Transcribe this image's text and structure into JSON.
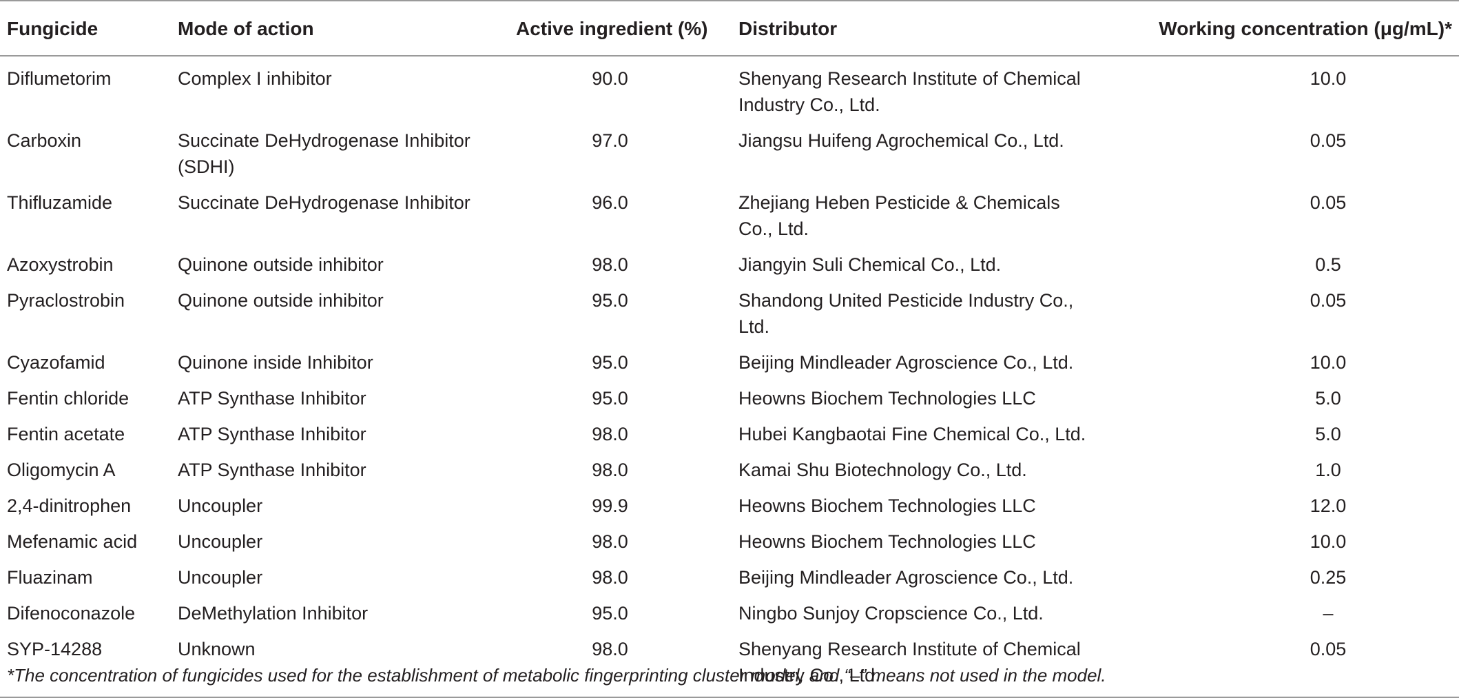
{
  "table": {
    "headers": [
      "Fungicide",
      "Mode of action",
      "Active ingredient (%)",
      "Distributor",
      "Working concentration (μg/mL)*"
    ],
    "rows": [
      [
        "Diflumetorim",
        "Complex I inhibitor",
        "90.0",
        "Shenyang Research Institute of Chemical Industry Co., Ltd.",
        "10.0"
      ],
      [
        "Carboxin",
        "Succinate DeHydrogenase Inhibitor (SDHI)",
        "97.0",
        "Jiangsu Huifeng Agrochemical Co., Ltd.",
        "0.05"
      ],
      [
        "Thifluzamide",
        "Succinate DeHydrogenase Inhibitor",
        "96.0",
        "Zhejiang Heben Pesticide & Chemicals Co., Ltd.",
        "0.05"
      ],
      [
        "Azoxystrobin",
        "Quinone outside inhibitor",
        "98.0",
        "Jiangyin Suli Chemical Co., Ltd.",
        "0.5"
      ],
      [
        "Pyraclostrobin",
        "Quinone outside inhibitor",
        "95.0",
        "Shandong United Pesticide Industry Co., Ltd.",
        "0.05"
      ],
      [
        "Cyazofamid",
        "Quinone inside Inhibitor",
        "95.0",
        "Beijing Mindleader Agroscience Co., Ltd.",
        "10.0"
      ],
      [
        "Fentin chloride",
        "ATP Synthase Inhibitor",
        "95.0",
        "Heowns Biochem Technologies LLC",
        "5.0"
      ],
      [
        "Fentin acetate",
        "ATP Synthase Inhibitor",
        "98.0",
        "Hubei Kangbaotai Fine Chemical Co., Ltd.",
        "5.0"
      ],
      [
        "Oligomycin A",
        "ATP Synthase Inhibitor",
        "98.0",
        "Kamai Shu Biotechnology Co., Ltd.",
        "1.0"
      ],
      [
        "2,4-dinitrophen",
        "Uncoupler",
        "99.9",
        "Heowns Biochem Technologies LLC",
        "12.0"
      ],
      [
        "Mefenamic acid",
        "Uncoupler",
        "98.0",
        "Heowns Biochem Technologies LLC",
        "10.0"
      ],
      [
        "Fluazinam",
        "Uncoupler",
        "98.0",
        "Beijing Mindleader Agroscience Co., Ltd.",
        "0.25"
      ],
      [
        "Difenoconazole",
        "DeMethylation Inhibitor",
        "95.0",
        "Ningbo Sunjoy Cropscience Co., Ltd.",
        "–"
      ],
      [
        "SYP-14288",
        "Unknown",
        "98.0",
        "Shenyang Research Institute of Chemical Industry Co., Ltd.",
        "0.05"
      ]
    ]
  },
  "footnote": "*The concentration of fungicides used for the establishment of metabolic fingerprinting cluster model, and “–” means not used in the model."
}
